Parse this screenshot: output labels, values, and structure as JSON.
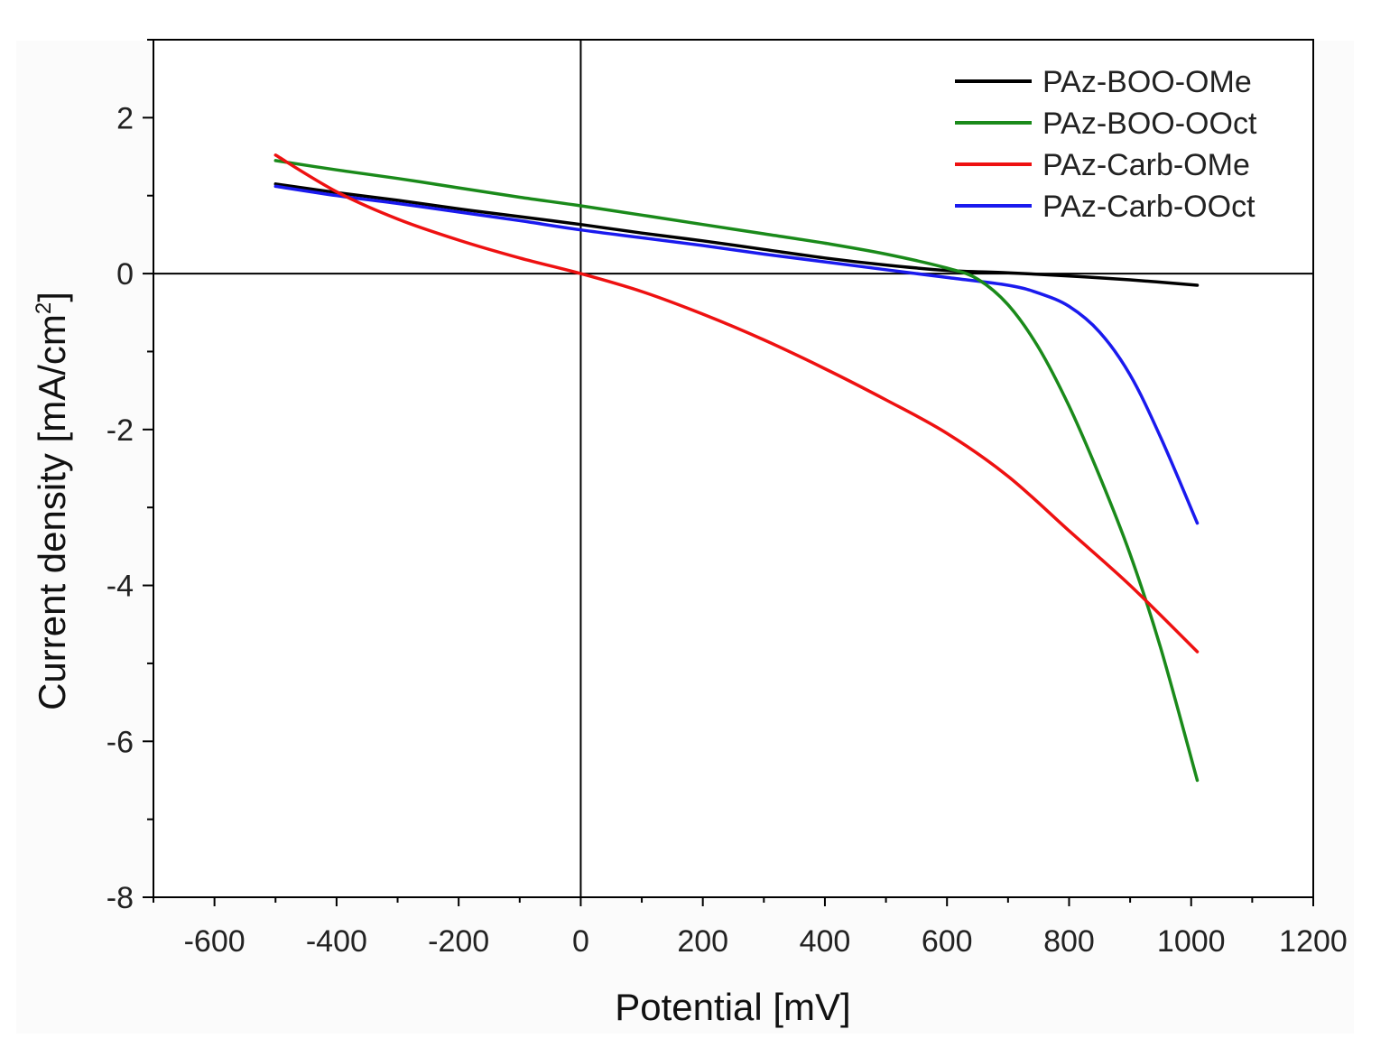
{
  "chart_data": {
    "type": "line",
    "xlabel": "Potential [mV]",
    "ylabel_main": "Current density [mA/cm",
    "ylabel_sup": "2",
    "ylabel_end": "]",
    "xlim": [
      -700,
      1200
    ],
    "ylim": [
      -8,
      3
    ],
    "x_ticks": [
      -600,
      -400,
      -200,
      0,
      200,
      400,
      600,
      800,
      1000,
      1200
    ],
    "x_tick_labels": [
      "-600",
      "-400",
      "-200",
      "0",
      "200",
      "400",
      "600",
      "800",
      "1000",
      "1200"
    ],
    "y_ticks": [
      2,
      0,
      -2,
      -4,
      -6,
      -8
    ],
    "y_tick_labels": [
      "2",
      "0",
      "-2",
      "-4",
      "-6",
      "-8"
    ],
    "grid": false,
    "reference_lines": {
      "x": 0,
      "y": 0
    },
    "legend_position": "top-right",
    "series": [
      {
        "name": "PAz-BOO-OMe",
        "color": "#000000",
        "x": [
          -500,
          -400,
          -300,
          -200,
          -100,
          0,
          100,
          200,
          300,
          400,
          500,
          600,
          700,
          800,
          900,
          1010
        ],
        "y": [
          1.15,
          1.04,
          0.94,
          0.83,
          0.73,
          0.63,
          0.52,
          0.42,
          0.31,
          0.2,
          0.11,
          0.04,
          0.01,
          -0.03,
          -0.08,
          -0.15
        ]
      },
      {
        "name": "PAz-BOO-OOct",
        "color": "#1a8a1a",
        "x": [
          -500,
          -400,
          -300,
          -200,
          -100,
          0,
          100,
          200,
          300,
          400,
          500,
          600,
          650,
          700,
          750,
          800,
          850,
          900,
          950,
          1010
        ],
        "y": [
          1.45,
          1.33,
          1.22,
          1.1,
          0.98,
          0.87,
          0.75,
          0.63,
          0.51,
          0.39,
          0.25,
          0.07,
          -0.07,
          -0.4,
          -0.95,
          -1.7,
          -2.6,
          -3.6,
          -4.8,
          -6.5
        ]
      },
      {
        "name": "PAz-Carb-OMe",
        "color": "#ee1111",
        "x": [
          -500,
          -400,
          -300,
          -200,
          -100,
          0,
          100,
          200,
          300,
          400,
          500,
          600,
          700,
          800,
          900,
          1010
        ],
        "y": [
          1.52,
          1.05,
          0.7,
          0.43,
          0.2,
          0.0,
          -0.23,
          -0.52,
          -0.85,
          -1.22,
          -1.62,
          -2.05,
          -2.6,
          -3.3,
          -4.0,
          -4.85
        ]
      },
      {
        "name": "PAz-Carb-OOct",
        "color": "#1a1aee",
        "x": [
          -500,
          -400,
          -300,
          -200,
          -100,
          0,
          100,
          200,
          300,
          400,
          500,
          600,
          700,
          750,
          800,
          850,
          900,
          950,
          1010
        ],
        "y": [
          1.12,
          1.0,
          0.9,
          0.79,
          0.68,
          0.56,
          0.46,
          0.36,
          0.25,
          0.15,
          0.05,
          -0.05,
          -0.15,
          -0.25,
          -0.42,
          -0.75,
          -1.3,
          -2.1,
          -3.2
        ]
      }
    ]
  }
}
